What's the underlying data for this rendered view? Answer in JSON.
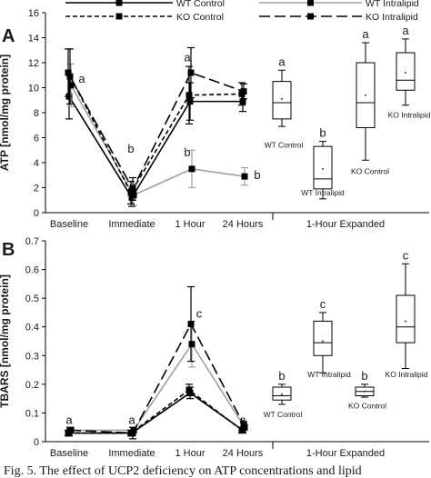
{
  "caption": "Fig. 5. The effect of UCP2 deficiency on ATP concentrations and lipid",
  "legend": [
    {
      "key": "wt_control",
      "label": "WT Control",
      "color": "#000000",
      "dash": "solid"
    },
    {
      "key": "wt_intralipid",
      "label": "WT Intralipid",
      "color": "#a0a0a0",
      "dash": "solid"
    },
    {
      "key": "ko_control",
      "label": "KO Control",
      "color": "#000000",
      "dash": "dashed-short"
    },
    {
      "key": "ko_intralipid",
      "label": "KO Intralipid",
      "color": "#000000",
      "dash": "dashed-long"
    }
  ],
  "chart_data": [
    {
      "panel": "A",
      "type": "line",
      "ylabel": "ATP [nmol/mg protein]",
      "ylim": [
        0,
        16
      ],
      "yticks": [
        0,
        2,
        4,
        6,
        8,
        10,
        12,
        14,
        16
      ],
      "categories": [
        "Baseline",
        "Immediate",
        "1 Hour",
        "24 Hours"
      ],
      "expanded_label": "1-Hour Expanded",
      "series": [
        {
          "name": "WT Control",
          "values": [
            9.3,
            1.2,
            8.9,
            8.9
          ],
          "errors": [
            1.8,
            0.7,
            1.5,
            0.8
          ]
        },
        {
          "name": "WT Intralipid",
          "values": [
            10.2,
            1.4,
            3.5,
            2.9
          ],
          "errors": [
            1.7,
            0.8,
            1.5,
            0.7
          ]
        },
        {
          "name": "KO Control",
          "values": [
            11.2,
            1.6,
            9.4,
            9.5
          ],
          "errors": [
            1.9,
            0.9,
            2.3,
            0.9
          ]
        },
        {
          "name": "KO Intralipid",
          "values": [
            10.9,
            1.9,
            11.2,
            9.7
          ],
          "errors": [
            2.2,
            0.9,
            2.0,
            0.6
          ]
        }
      ],
      "point_labels": [
        {
          "text": "a",
          "category": "Baseline",
          "y": 10.7
        },
        {
          "text": "b",
          "category": "Immediate",
          "y": 5.1
        },
        {
          "text": "a",
          "category": "1 Hour",
          "y": 12.4
        },
        {
          "text": "b",
          "category": "1 Hour",
          "y": 4.8
        },
        {
          "text": "b",
          "category": "24 Hours",
          "y": 3.0
        }
      ],
      "boxplots": [
        {
          "label": "WT Control",
          "min": 6.9,
          "q1": 7.5,
          "median": 8.8,
          "q3": 10.5,
          "max": 11.4,
          "mean": 9.1,
          "letter": "a"
        },
        {
          "label": "WT Intralipid",
          "min": 1.1,
          "q1": 1.9,
          "median": 2.7,
          "q3": 5.3,
          "max": 5.7,
          "mean": 3.5,
          "letter": "b"
        },
        {
          "label": "KO Control",
          "min": 4.2,
          "q1": 6.8,
          "median": 8.8,
          "q3": 12.0,
          "max": 13.6,
          "mean": 9.4,
          "letter": "a"
        },
        {
          "label": "KO Intralipid",
          "min": 8.6,
          "q1": 9.8,
          "median": 10.6,
          "q3": 12.8,
          "max": 13.9,
          "mean": 11.2,
          "letter": "a"
        }
      ]
    },
    {
      "panel": "B",
      "type": "line",
      "ylabel": "TBARS [nmol/mg protein]",
      "ylim": [
        0,
        0.7
      ],
      "yticks": [
        0,
        0.1,
        0.2,
        0.3,
        0.4,
        0.5,
        0.6,
        0.7
      ],
      "categories": [
        "Baseline",
        "Immediate",
        "1 Hour",
        "24 Hours"
      ],
      "expanded_label": "1-Hour Expanded",
      "series": [
        {
          "name": "WT Control",
          "values": [
            0.03,
            0.03,
            0.17,
            0.04
          ],
          "errors": [
            0.01,
            0.01,
            0.02,
            0.01
          ]
        },
        {
          "name": "WT Intralipid",
          "values": [
            0.04,
            0.04,
            0.34,
            0.05
          ],
          "errors": [
            0.01,
            0.01,
            0.08,
            0.01
          ]
        },
        {
          "name": "KO Control",
          "values": [
            0.03,
            0.03,
            0.18,
            0.04
          ],
          "errors": [
            0.01,
            0.01,
            0.02,
            0.01
          ]
        },
        {
          "name": "KO Intralipid",
          "values": [
            0.04,
            0.03,
            0.41,
            0.06
          ],
          "errors": [
            0.01,
            0.02,
            0.13,
            0.01
          ]
        }
      ],
      "point_labels": [
        {
          "text": "a",
          "category": "Baseline",
          "y": 0.075
        },
        {
          "text": "a",
          "category": "Immediate",
          "y": 0.075
        },
        {
          "text": "c",
          "category": "1 Hour",
          "y": 0.445
        },
        {
          "text": "a",
          "category": "24 Hours",
          "y": 0.075
        }
      ],
      "boxplots": [
        {
          "label": "WT Control",
          "min": 0.13,
          "q1": 0.145,
          "median": 0.16,
          "q3": 0.19,
          "max": 0.2,
          "mean": 0.165,
          "letter": "b"
        },
        {
          "label": "WT Intralipid",
          "min": 0.24,
          "q1": 0.3,
          "median": 0.345,
          "q3": 0.42,
          "max": 0.45,
          "mean": 0.35,
          "letter": "c"
        },
        {
          "label": "KO Control",
          "min": 0.155,
          "q1": 0.16,
          "median": 0.175,
          "q3": 0.19,
          "max": 0.2,
          "mean": 0.175,
          "letter": "b"
        },
        {
          "label": "KO Intralipid",
          "min": 0.255,
          "q1": 0.345,
          "median": 0.4,
          "q3": 0.51,
          "max": 0.62,
          "mean": 0.42,
          "letter": "c"
        }
      ]
    }
  ]
}
